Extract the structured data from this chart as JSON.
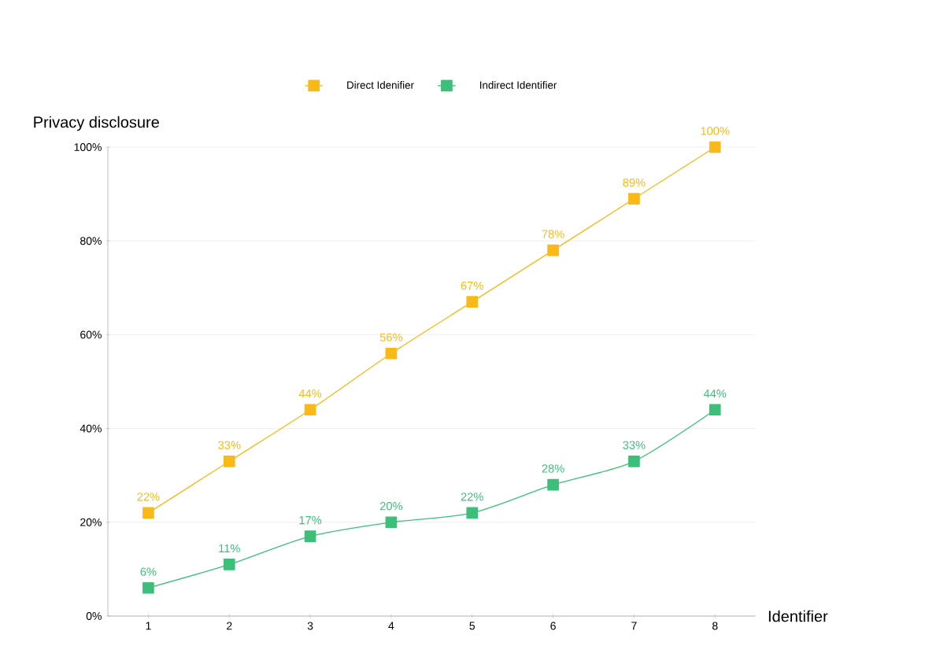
{
  "chart_data": {
    "type": "line",
    "categories": [
      "1",
      "2",
      "3",
      "4",
      "5",
      "6",
      "7",
      "8"
    ],
    "xlabel": "Identifier",
    "ylabel": "Privacy disclosure",
    "series": [
      {
        "name": "Direct Idenifier",
        "color": "#f9b917",
        "values": [
          22,
          33,
          44,
          56,
          67,
          78,
          89,
          100
        ],
        "value_labels": [
          "22%",
          "33%",
          "44%",
          "56%",
          "67%",
          "78%",
          "89%",
          "100%"
        ]
      },
      {
        "name": "Indirect Identifier",
        "color": "#3dbf7a",
        "values": [
          6,
          11,
          17,
          20,
          22,
          28,
          33,
          44
        ],
        "value_labels": [
          "6%",
          "11%",
          "17%",
          "20%",
          "22%",
          "28%",
          "33%",
          "44%"
        ]
      }
    ],
    "ylim": [
      0,
      100
    ],
    "yticks": [
      {
        "value": 0,
        "label": "0%"
      },
      {
        "value": 20,
        "label": "20%"
      },
      {
        "value": 40,
        "label": "40%"
      },
      {
        "value": 60,
        "label": "60%"
      },
      {
        "value": 80,
        "label": "80%"
      },
      {
        "value": 100,
        "label": "100%"
      }
    ],
    "grid": "y",
    "legend": "top",
    "marker": "square",
    "line_style": "solid"
  }
}
